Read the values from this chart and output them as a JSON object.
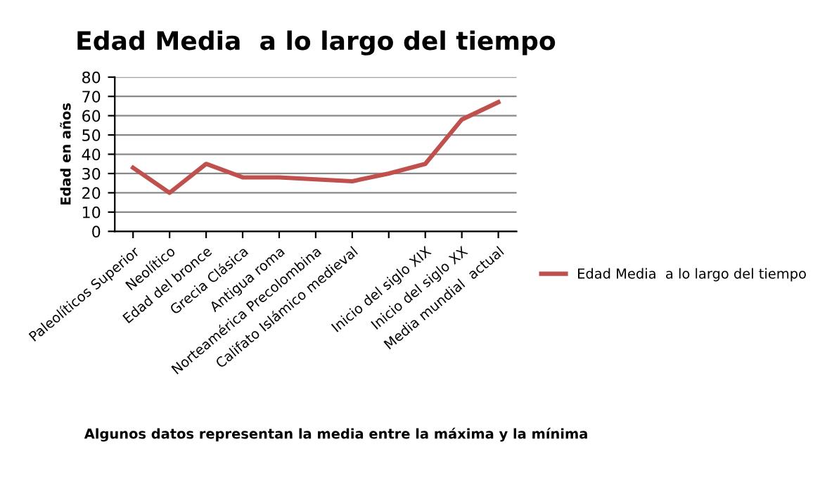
{
  "chart_data": {
    "type": "line",
    "title": "Edad Media  a lo largo del tiempo",
    "ylabel": "Edad en años",
    "categories": [
      "Paleolíticos Superior",
      "Neolítico",
      "Edad del bronce",
      "Grecia Clásica",
      "Antigua roma",
      "Norteamérica Precolombina",
      "Califato Islámico medieval",
      null,
      "Inicio del siglo XIX",
      "Inicio del siglo XX",
      "Media mundial  actual"
    ],
    "series": [
      {
        "name": "Edad Media  a lo largo del tiempo",
        "color": "#c0504d",
        "values": [
          33,
          20,
          35,
          28,
          28,
          27,
          26,
          30,
          35,
          58,
          67
        ]
      }
    ],
    "ylim": [
      0,
      80
    ],
    "yticks": [
      0,
      10,
      20,
      30,
      40,
      50,
      60,
      70,
      80
    ],
    "grid": "y",
    "legend": "right",
    "marker": "none",
    "annotations": [
      "Algunos datos representan la media entre la máxima y la mínima"
    ]
  }
}
